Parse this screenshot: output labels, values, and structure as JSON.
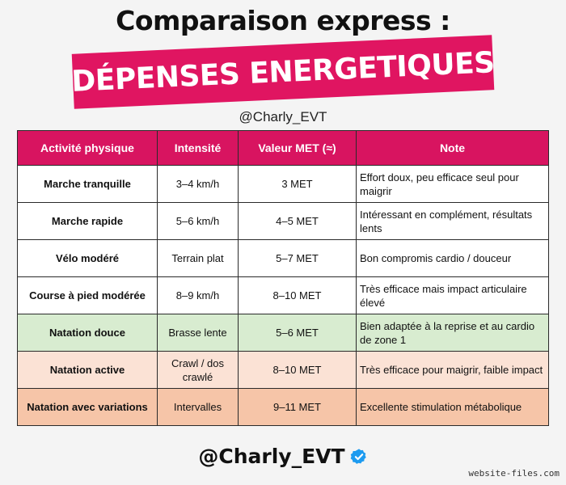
{
  "title": "Comparaison express :",
  "banner": "DÉPENSES ENERGETIQUES",
  "handle_top": "@Charly_EVT",
  "table": {
    "headers": [
      "Activité physique",
      "Intensité",
      "Valeur MET (≈)",
      "Note"
    ],
    "rows": [
      {
        "activity": "Marche tranquille",
        "intensity": "3–4 km/h",
        "met": "3 MET",
        "note": "Effort doux, peu efficace seul pour maigrir",
        "color": "#ffffff"
      },
      {
        "activity": "Marche rapide",
        "intensity": "5–6 km/h",
        "met": "4–5 MET",
        "note": "Intéressant en complément, résultats lents",
        "color": "#ffffff"
      },
      {
        "activity": "Vélo modéré",
        "intensity": "Terrain plat",
        "met": "5–7 MET",
        "note": "Bon compromis cardio / douceur",
        "color": "#ffffff"
      },
      {
        "activity": "Course à pied modérée",
        "intensity": "8–9 km/h",
        "met": "8–10 MET",
        "note": "Très efficace mais impact articulaire élevé",
        "color": "#ffffff"
      },
      {
        "activity": "Natation douce",
        "intensity": "Brasse lente",
        "met": "5–6 MET",
        "note": "Bien adaptée à la reprise et au cardio de zone 1",
        "color": "#d8ecd0"
      },
      {
        "activity": "Natation active",
        "intensity": "Crawl / dos crawlé",
        "met": "8–10 MET",
        "note": "Très efficace pour maigrir, faible impact",
        "color": "#fbe2d5"
      },
      {
        "activity": "Natation avec variations",
        "intensity": "Intervalles",
        "met": "9–11 MET",
        "note": "Excellente stimulation métabolique",
        "color": "#f6c5a8"
      }
    ]
  },
  "handle_bottom": "@Charly_EVT",
  "watermark": "website-files.com",
  "colors": {
    "accent": "#e01561",
    "header": "#d81460",
    "verified": "#1d9bf0"
  },
  "icons": {
    "verified": "verified-badge-icon"
  }
}
